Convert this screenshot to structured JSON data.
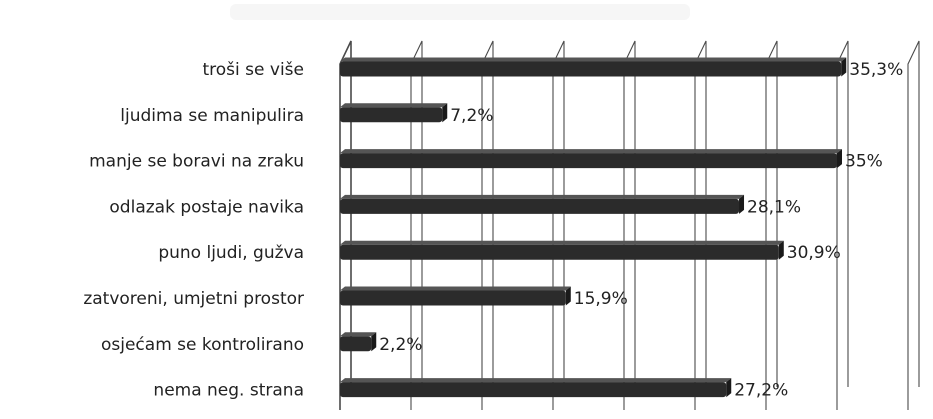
{
  "chart_data": {
    "type": "bar",
    "orientation": "horizontal",
    "style": "3d",
    "categories": [
      "troši se više",
      "ljudima se manipulira",
      "manje se boravi na zraku",
      "odlazak postaje navika",
      "puno ljudi, gužva",
      "zatvoreni, umjetni prostor",
      "osjećam se kontrolirano",
      "nema neg. strana"
    ],
    "values": [
      35.3,
      7.2,
      35,
      28.1,
      30.9,
      15.9,
      2.2,
      27.2
    ],
    "data_labels": [
      "35,3%",
      "7,2%",
      "35%",
      "28,1%",
      "30,9%",
      "15,9%",
      "2,2%",
      "27,2%"
    ],
    "unit": "%",
    "xlim": [
      0,
      40
    ],
    "grid": true,
    "legend": "none",
    "colors": {
      "bar": "#2b2b2b",
      "bar_top": "#555555",
      "grid": "#4a4a4a",
      "text": "#222222"
    }
  }
}
